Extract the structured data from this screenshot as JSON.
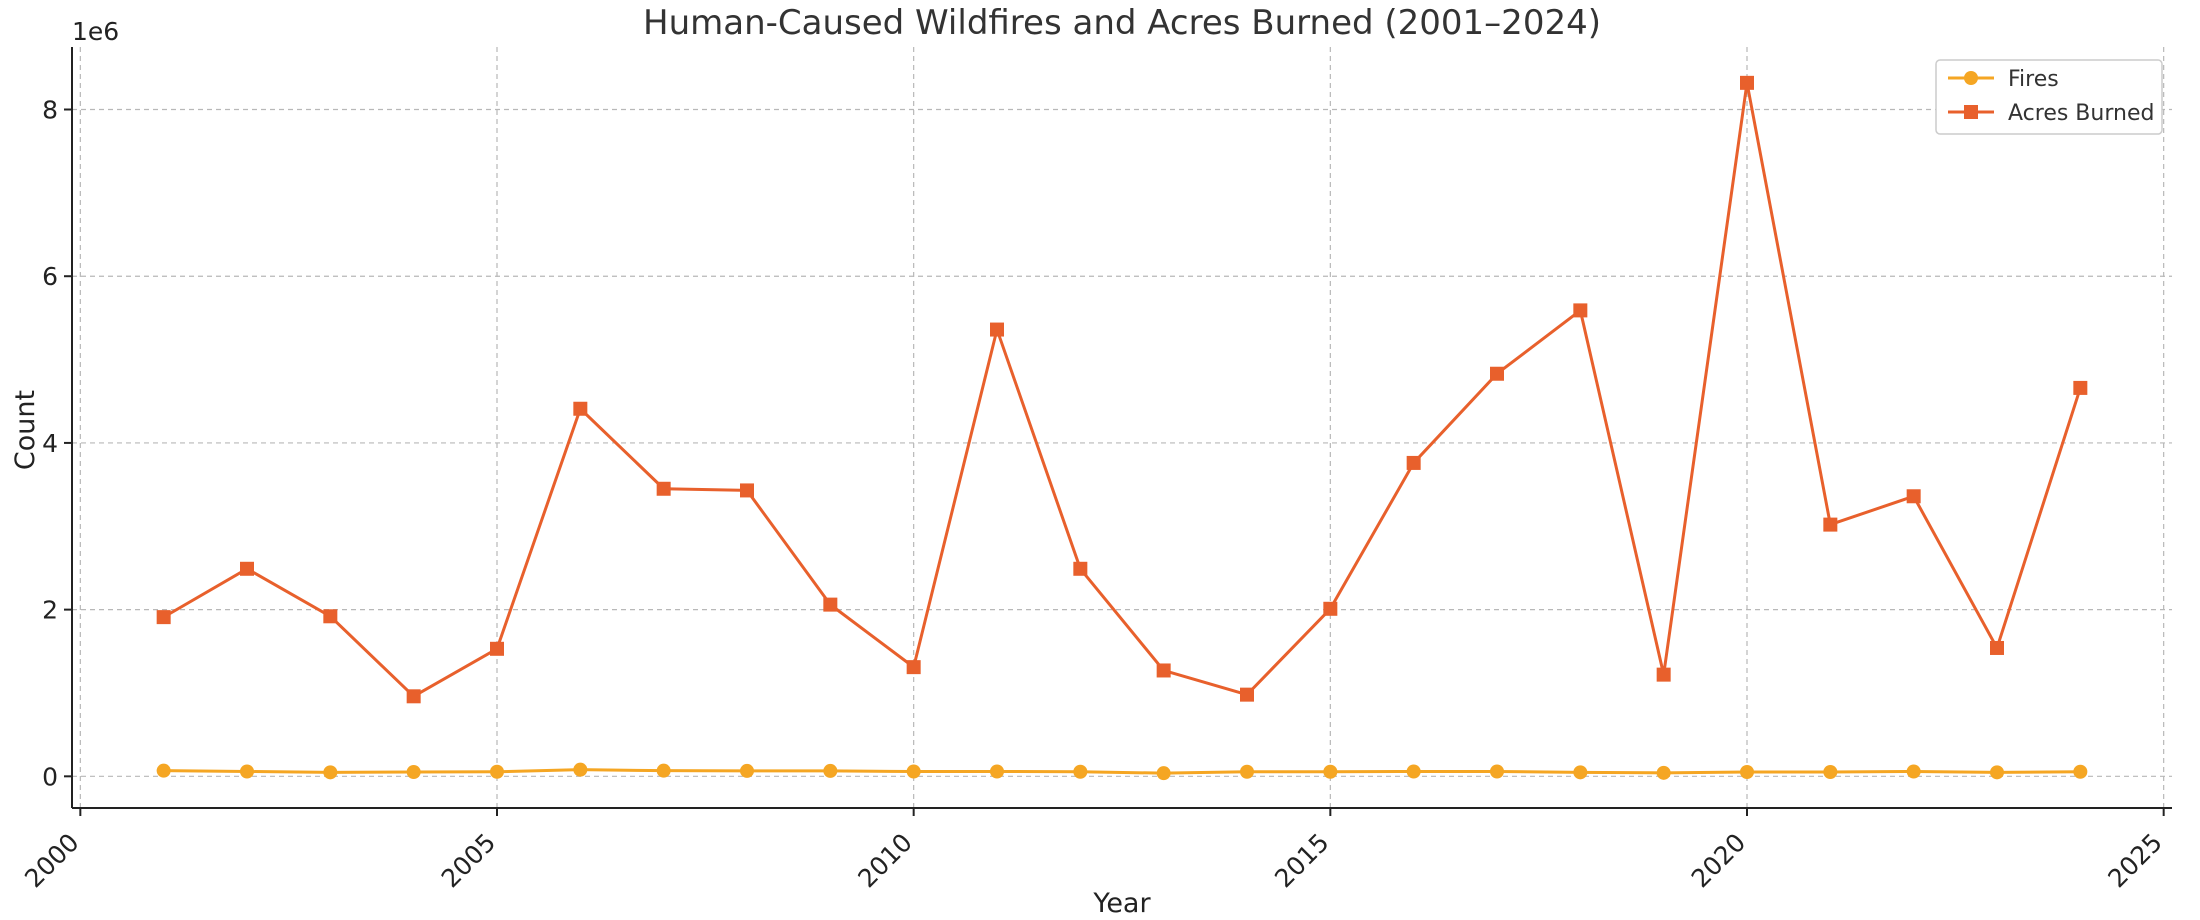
{
  "chart_data": {
    "type": "line",
    "title": "Human-Caused Wildfires and Acres Burned (2001–2024)",
    "xlabel": "Year",
    "ylabel": "Count",
    "y_scale_label": "1e6",
    "xlim": [
      1999.9,
      2025.1
    ],
    "ylim": [
      -0.38,
      8.75
    ],
    "x_ticks": [
      2000,
      2005,
      2010,
      2015,
      2020,
      2025
    ],
    "y_ticks": [
      0,
      2,
      4,
      6,
      8
    ],
    "grid": true,
    "legend_position": "top-right",
    "x": [
      2001,
      2002,
      2003,
      2004,
      2005,
      2006,
      2007,
      2008,
      2009,
      2010,
      2011,
      2012,
      2013,
      2014,
      2015,
      2016,
      2017,
      2018,
      2019,
      2020,
      2021,
      2022,
      2023,
      2024
    ],
    "series": [
      {
        "name": "Fires",
        "color": "#f5a623",
        "marker": "circle",
        "values": [
          0.068,
          0.058,
          0.048,
          0.052,
          0.055,
          0.08,
          0.068,
          0.065,
          0.065,
          0.058,
          0.058,
          0.055,
          0.038,
          0.055,
          0.055,
          0.058,
          0.058,
          0.048,
          0.042,
          0.052,
          0.052,
          0.058,
          0.048,
          0.055
        ]
      },
      {
        "name": "Acres Burned",
        "color": "#e8602c",
        "marker": "square",
        "values": [
          1.91,
          2.49,
          1.92,
          0.96,
          1.53,
          4.41,
          3.45,
          3.43,
          2.06,
          1.31,
          5.36,
          2.49,
          1.27,
          0.98,
          2.01,
          3.76,
          4.83,
          5.59,
          1.22,
          8.32,
          3.02,
          3.36,
          1.54,
          4.66
        ]
      }
    ]
  }
}
